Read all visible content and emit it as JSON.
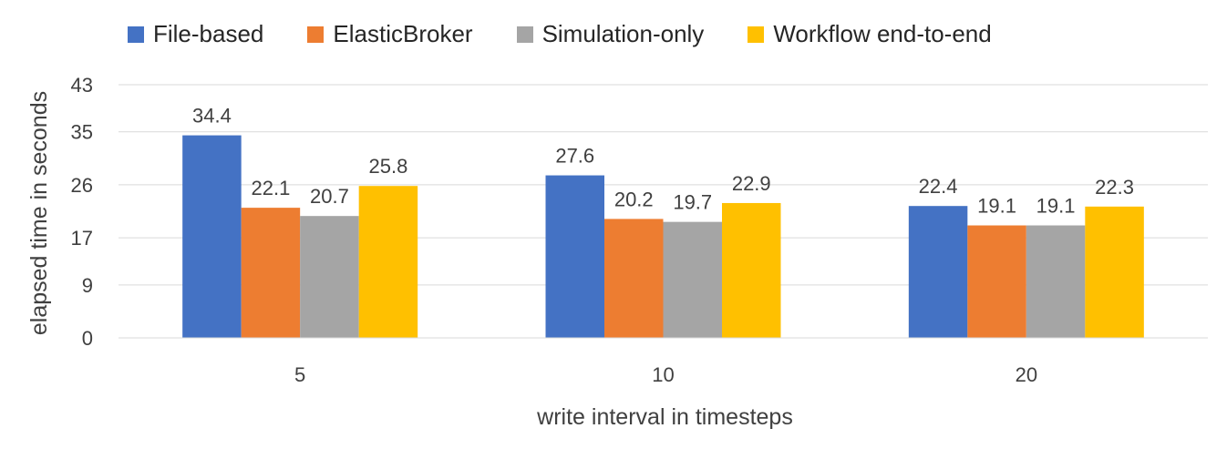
{
  "chart_data": {
    "type": "bar",
    "title": "",
    "xlabel": "write interval in timesteps",
    "ylabel": "elapsed time in seconds",
    "categories": [
      "5",
      "10",
      "20"
    ],
    "series": [
      {
        "name": "File-based",
        "color": "#4472C4",
        "values": [
          34.4,
          27.6,
          22.4
        ]
      },
      {
        "name": "ElasticBroker",
        "color": "#ED7D31",
        "values": [
          22.1,
          20.2,
          19.1
        ]
      },
      {
        "name": "Simulation-only",
        "color": "#A5A5A5",
        "values": [
          20.7,
          19.7,
          19.1
        ]
      },
      {
        "name": "Workflow end-to-end",
        "color": "#FFC000",
        "values": [
          25.8,
          22.9,
          22.3
        ]
      }
    ],
    "yticks": [
      "0",
      "9",
      "17",
      "26",
      "35",
      "43"
    ],
    "ylim": [
      0,
      43
    ],
    "grid": true,
    "legend_position": "top"
  }
}
